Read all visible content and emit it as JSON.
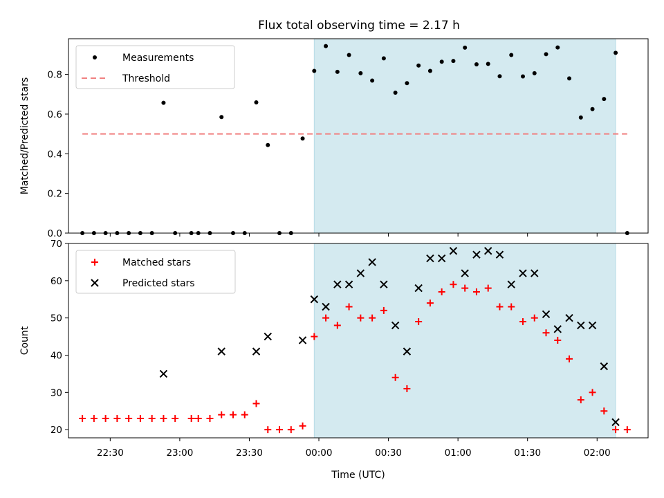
{
  "title": "Flux total observing time = 2.17 h",
  "chart_data": [
    {
      "type": "scatter",
      "title": "Flux total observing time = 2.17 h",
      "xlabel": "",
      "ylabel": "Matched/Predicted stars",
      "xlim": [
        "22:12",
        "02:22"
      ],
      "ylim": [
        0,
        0.98
      ],
      "xticks": [
        "22:30",
        "23:00",
        "23:30",
        "00:00",
        "00:30",
        "01:00",
        "01:30",
        "02:00"
      ],
      "yticks": [
        "0.0",
        "0.2",
        "0.4",
        "0.6",
        "0.8"
      ],
      "highlight_span": {
        "from": "23:58",
        "to": "02:08",
        "color": "#d4eaf0"
      },
      "legend": {
        "placement": "top-left"
      },
      "series": [
        {
          "name": "Measurements",
          "marker": "dot",
          "color": "#000000",
          "points": [
            [
              "22:18",
              0.0
            ],
            [
              "22:23",
              0.0
            ],
            [
              "22:28",
              0.0
            ],
            [
              "22:33",
              0.0
            ],
            [
              "22:38",
              0.0
            ],
            [
              "22:43",
              0.0
            ],
            [
              "22:48",
              0.0
            ],
            [
              "22:53",
              0.657
            ],
            [
              "22:58",
              0.0
            ],
            [
              "23:05",
              0.0
            ],
            [
              "23:08",
              0.0
            ],
            [
              "23:13",
              0.0
            ],
            [
              "23:18",
              0.585
            ],
            [
              "23:23",
              0.0
            ],
            [
              "23:28",
              0.0
            ],
            [
              "23:33",
              0.659
            ],
            [
              "23:38",
              0.444
            ],
            [
              "23:43",
              0.0
            ],
            [
              "23:48",
              0.0
            ],
            [
              "23:53",
              0.477
            ],
            [
              "23:58",
              0.818
            ],
            [
              "00:03",
              0.943
            ],
            [
              "00:08",
              0.813
            ],
            [
              "00:13",
              0.898
            ],
            [
              "00:18",
              0.806
            ],
            [
              "00:23",
              0.769
            ],
            [
              "00:28",
              0.881
            ],
            [
              "00:33",
              0.708
            ],
            [
              "00:38",
              0.756
            ],
            [
              "00:43",
              0.845
            ],
            [
              "00:48",
              0.818
            ],
            [
              "00:53",
              0.864
            ],
            [
              "00:58",
              0.868
            ],
            [
              "01:03",
              0.935
            ],
            [
              "01:08",
              0.851
            ],
            [
              "01:13",
              0.853
            ],
            [
              "01:18",
              0.791
            ],
            [
              "01:23",
              0.898
            ],
            [
              "01:28",
              0.79
            ],
            [
              "01:33",
              0.806
            ],
            [
              "01:38",
              0.902
            ],
            [
              "01:43",
              0.936
            ],
            [
              "01:48",
              0.78
            ],
            [
              "01:53",
              0.583
            ],
            [
              "01:58",
              0.625
            ],
            [
              "02:03",
              0.676
            ],
            [
              "02:08",
              0.909
            ],
            [
              "02:13",
              0.0
            ]
          ]
        },
        {
          "name": "Threshold",
          "style": "dashed",
          "color": "#f08080",
          "points": [
            [
              "22:18",
              0.5
            ],
            [
              "02:13",
              0.5
            ]
          ]
        }
      ]
    },
    {
      "type": "scatter",
      "xlabel": "Time (UTC)",
      "ylabel": "Count",
      "xlim": [
        "22:12",
        "02:22"
      ],
      "ylim": [
        17.8,
        70
      ],
      "xticks": [
        "22:30",
        "23:00",
        "23:30",
        "00:00",
        "00:30",
        "01:00",
        "01:30",
        "02:00"
      ],
      "yticks": [
        "20",
        "30",
        "40",
        "50",
        "60",
        "70"
      ],
      "highlight_span": {
        "from": "23:58",
        "to": "02:08",
        "color": "#d4eaf0"
      },
      "legend": {
        "placement": "top-left"
      },
      "series": [
        {
          "name": "Matched stars",
          "marker": "plus",
          "color": "#ff0000",
          "points": [
            [
              "22:18",
              23
            ],
            [
              "22:23",
              23
            ],
            [
              "22:28",
              23
            ],
            [
              "22:33",
              23
            ],
            [
              "22:38",
              23
            ],
            [
              "22:43",
              23
            ],
            [
              "22:48",
              23
            ],
            [
              "22:53",
              23
            ],
            [
              "22:58",
              23
            ],
            [
              "23:05",
              23
            ],
            [
              "23:08",
              23
            ],
            [
              "23:13",
              23
            ],
            [
              "23:18",
              24
            ],
            [
              "23:23",
              24
            ],
            [
              "23:28",
              24
            ],
            [
              "23:33",
              27
            ],
            [
              "23:38",
              20
            ],
            [
              "23:43",
              20
            ],
            [
              "23:48",
              20
            ],
            [
              "23:53",
              21
            ],
            [
              "23:58",
              45
            ],
            [
              "00:03",
              50
            ],
            [
              "00:08",
              48
            ],
            [
              "00:13",
              53
            ],
            [
              "00:18",
              50
            ],
            [
              "00:23",
              50
            ],
            [
              "00:28",
              52
            ],
            [
              "00:33",
              34
            ],
            [
              "00:38",
              31
            ],
            [
              "00:43",
              49
            ],
            [
              "00:48",
              54
            ],
            [
              "00:53",
              57
            ],
            [
              "00:58",
              59
            ],
            [
              "01:03",
              58
            ],
            [
              "01:08",
              57
            ],
            [
              "01:13",
              58
            ],
            [
              "01:18",
              53
            ],
            [
              "01:23",
              53
            ],
            [
              "01:28",
              49
            ],
            [
              "01:33",
              50
            ],
            [
              "01:38",
              46
            ],
            [
              "01:43",
              44
            ],
            [
              "01:48",
              39
            ],
            [
              "01:53",
              28
            ],
            [
              "01:58",
              30
            ],
            [
              "02:03",
              25
            ],
            [
              "02:08",
              20
            ],
            [
              "02:13",
              20
            ]
          ]
        },
        {
          "name": "Predicted stars",
          "marker": "x",
          "color": "#000000",
          "points": [
            [
              "22:53",
              35
            ],
            [
              "23:18",
              41
            ],
            [
              "23:33",
              41
            ],
            [
              "23:38",
              45
            ],
            [
              "23:53",
              44
            ],
            [
              "23:58",
              55
            ],
            [
              "00:03",
              53
            ],
            [
              "00:08",
              59
            ],
            [
              "00:13",
              59
            ],
            [
              "00:18",
              62
            ],
            [
              "00:23",
              65
            ],
            [
              "00:28",
              59
            ],
            [
              "00:33",
              48
            ],
            [
              "00:38",
              41
            ],
            [
              "00:43",
              58
            ],
            [
              "00:48",
              66
            ],
            [
              "00:53",
              66
            ],
            [
              "00:58",
              68
            ],
            [
              "01:03",
              62
            ],
            [
              "01:08",
              67
            ],
            [
              "01:13",
              68
            ],
            [
              "01:18",
              67
            ],
            [
              "01:23",
              59
            ],
            [
              "01:28",
              62
            ],
            [
              "01:33",
              62
            ],
            [
              "01:38",
              51
            ],
            [
              "01:43",
              47
            ],
            [
              "01:48",
              50
            ],
            [
              "01:53",
              48
            ],
            [
              "01:58",
              48
            ],
            [
              "02:03",
              37
            ],
            [
              "02:08",
              22
            ]
          ]
        }
      ]
    }
  ]
}
